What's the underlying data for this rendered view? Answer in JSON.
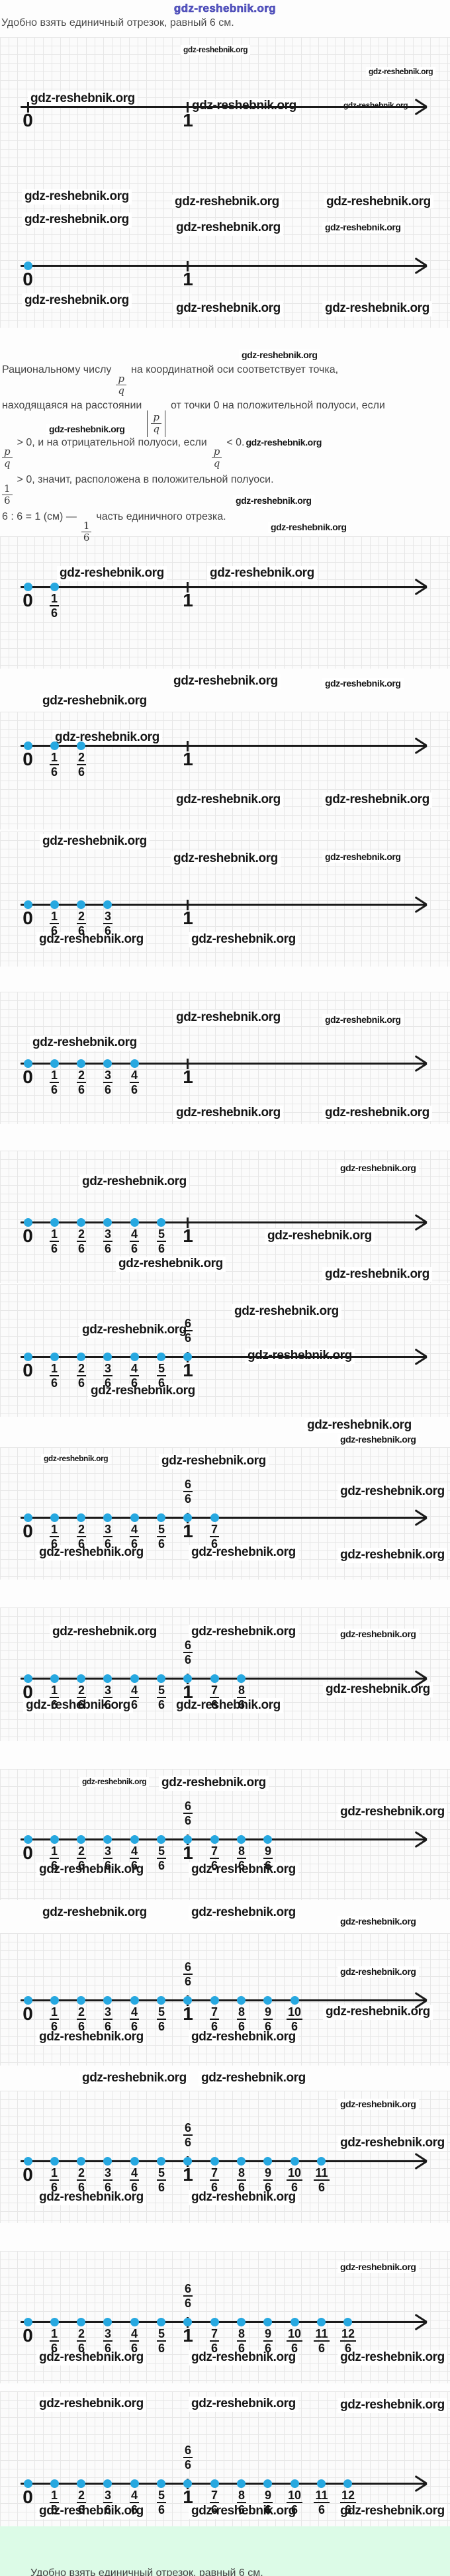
{
  "watermark": "gdz-reshebnik.org",
  "header": {
    "site_watermark": "gdz-reshebnik.org",
    "intro_line": "Удобно взять единичный отрезок, равный 6 см."
  },
  "theory": {
    "line1_before": "Рациональному числу",
    "line1_after": "на координатной оси соответствует точка,",
    "line2_before": "находящаяся на расстоянии",
    "line2_after": "от точки 0 на положительной полуоси, если",
    "line3_mid": "> 0, и на отрицательной полуоси, если",
    "line3_end": "< 0.",
    "line4_after": "> 0, значит, расположена в положительной полуоси.",
    "line5_before": "6 : 6 = 1 (см) —",
    "line5_after": "часть единичного отрезка.",
    "frac_pq_num": "p",
    "frac_pq_den": "q",
    "frac_16_num": "1",
    "frac_16_den": "6"
  },
  "colors": {
    "point_blue": "#27a8e0",
    "axis_black": "#1a1a1a",
    "footer_green": "#dcfbe7",
    "logo_blue": "#5b5bc4"
  },
  "figures": [
    {
      "points": [],
      "ticks": [
        "0",
        "1"
      ],
      "below_labels": [
        "0",
        "1"
      ],
      "above_label": null
    },
    {
      "points": [
        "0"
      ],
      "ticks": [
        "1"
      ],
      "below_labels": [
        "0",
        "1"
      ],
      "above_label": null
    },
    {
      "points": [
        "0",
        "1/6"
      ],
      "ticks": [
        "1"
      ],
      "below_labels": [
        "0",
        "1/6",
        "1"
      ],
      "above_label": null
    },
    {
      "points": [
        "0",
        "1/6",
        "2/6"
      ],
      "ticks": [
        "1"
      ],
      "below_labels": [
        "0",
        "1/6",
        "2/6",
        "1"
      ],
      "above_label": null
    },
    {
      "points": [
        "0",
        "1/6",
        "2/6",
        "3/6"
      ],
      "ticks": [
        "1"
      ],
      "below_labels": [
        "0",
        "1/6",
        "2/6",
        "3/6",
        "1"
      ],
      "above_label": null
    },
    {
      "points": [
        "0",
        "1/6",
        "2/6",
        "3/6",
        "4/6"
      ],
      "ticks": [
        "1"
      ],
      "below_labels": [
        "0",
        "1/6",
        "2/6",
        "3/6",
        "4/6",
        "1"
      ],
      "above_label": null
    },
    {
      "points": [
        "0",
        "1/6",
        "2/6",
        "3/6",
        "4/6",
        "5/6"
      ],
      "ticks": [
        "1"
      ],
      "below_labels": [
        "0",
        "1/6",
        "2/6",
        "3/6",
        "4/6",
        "5/6",
        "1"
      ],
      "above_label": null
    },
    {
      "points": [
        "0",
        "1/6",
        "2/6",
        "3/6",
        "4/6",
        "5/6",
        "6/6"
      ],
      "ticks": [
        "1"
      ],
      "below_labels": [
        "0",
        "1/6",
        "2/6",
        "3/6",
        "4/6",
        "5/6",
        "1"
      ],
      "above_label": "6/6"
    },
    {
      "points": [
        "0",
        "1/6",
        "2/6",
        "3/6",
        "4/6",
        "5/6",
        "6/6",
        "7/6"
      ],
      "ticks": [
        "1"
      ],
      "below_labels": [
        "0",
        "1/6",
        "2/6",
        "3/6",
        "4/6",
        "5/6",
        "1",
        "7/6"
      ],
      "above_label": "6/6"
    },
    {
      "points": [
        "0",
        "1/6",
        "2/6",
        "3/6",
        "4/6",
        "5/6",
        "6/6",
        "7/6",
        "8/6"
      ],
      "ticks": [
        "1"
      ],
      "below_labels": [
        "0",
        "1/6",
        "2/6",
        "3/6",
        "4/6",
        "5/6",
        "1",
        "7/6",
        "8/6"
      ],
      "above_label": "6/6"
    },
    {
      "points": [
        "0",
        "1/6",
        "2/6",
        "3/6",
        "4/6",
        "5/6",
        "6/6",
        "7/6",
        "8/6",
        "9/6"
      ],
      "ticks": [
        "1"
      ],
      "below_labels": [
        "0",
        "1/6",
        "2/6",
        "3/6",
        "4/6",
        "5/6",
        "1",
        "7/6",
        "8/6",
        "9/6"
      ],
      "above_label": "6/6"
    },
    {
      "points": [
        "0",
        "1/6",
        "2/6",
        "3/6",
        "4/6",
        "5/6",
        "6/6",
        "7/6",
        "8/6",
        "9/6",
        "10/6"
      ],
      "ticks": [
        "1"
      ],
      "below_labels": [
        "0",
        "1/6",
        "2/6",
        "3/6",
        "4/6",
        "5/6",
        "1",
        "7/6",
        "8/6",
        "9/6",
        "10/6"
      ],
      "above_label": "6/6"
    },
    {
      "points": [
        "0",
        "1/6",
        "2/6",
        "3/6",
        "4/6",
        "5/6",
        "6/6",
        "7/6",
        "8/6",
        "9/6",
        "10/6",
        "11/6"
      ],
      "ticks": [
        "1"
      ],
      "below_labels": [
        "0",
        "1/6",
        "2/6",
        "3/6",
        "4/6",
        "5/6",
        "1",
        "7/6",
        "8/6",
        "9/6",
        "10/6",
        "11/6"
      ],
      "above_label": "6/6"
    },
    {
      "points": [
        "0",
        "1/6",
        "2/6",
        "3/6",
        "4/6",
        "5/6",
        "6/6",
        "7/6",
        "8/6",
        "9/6",
        "10/6",
        "11/6",
        "12/6"
      ],
      "ticks": [
        "1"
      ],
      "below_labels": [
        "0",
        "1/6",
        "2/6",
        "3/6",
        "4/6",
        "5/6",
        "1",
        "7/6",
        "8/6",
        "9/6",
        "10/6",
        "11/6",
        "12/6"
      ],
      "above_label": "6/6"
    },
    {
      "points": [
        "0",
        "1/6",
        "2/6",
        "3/6",
        "4/6",
        "5/6",
        "6/6",
        "7/6",
        "8/6",
        "9/6",
        "10/6",
        "11/6",
        "12/6"
      ],
      "ticks": [
        "1"
      ],
      "below_labels": [
        "0",
        "1/6",
        "2/6",
        "3/6",
        "4/6",
        "5/6",
        "1",
        "7/6",
        "8/6",
        "9/6",
        "10/6",
        "11/6",
        "12/6"
      ],
      "above_label": "6/6"
    }
  ],
  "footer": {
    "partial_line": "Удобно взять единичный отрезок, равный 6 см."
  }
}
